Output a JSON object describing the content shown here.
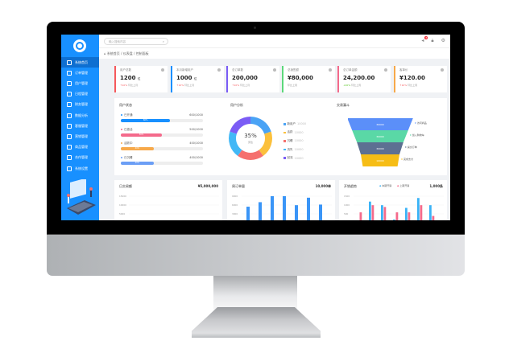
{
  "colors": {
    "primary": "#1890ff",
    "red": "#f5595c",
    "blue": "#1890ff",
    "purple": "#7a5cf5",
    "green": "#5cd87a",
    "pink": "#f46a8b",
    "orange": "#f7a94a"
  },
  "header": {
    "search_placeholder": "输入搜索内容",
    "search_icon": "search-icon",
    "notification_count": "8",
    "icons": [
      "notification-icon",
      "lock-icon",
      "gear-icon"
    ]
  },
  "breadcrumb": [
    "系统首页",
    "仪表盘",
    "控制面板"
  ],
  "sidebar": {
    "items": [
      {
        "label": "系统首页",
        "icon": "home-icon",
        "active": true
      },
      {
        "label": "订单管理",
        "icon": "document-icon"
      },
      {
        "label": "用户管理",
        "icon": "user-icon"
      },
      {
        "label": "日程管理",
        "icon": "calendar-icon"
      },
      {
        "label": "财务管理",
        "icon": "wallet-icon"
      },
      {
        "label": "数据分析",
        "icon": "chart-icon"
      },
      {
        "label": "客服管理",
        "icon": "service-icon"
      },
      {
        "label": "营销管理",
        "icon": "marketing-icon"
      },
      {
        "label": "商品管理",
        "icon": "box-icon"
      },
      {
        "label": "合作管理",
        "icon": "partner-icon"
      },
      {
        "label": "系统设置",
        "icon": "monitor-icon"
      }
    ]
  },
  "cards": [
    {
      "title": "用户总数",
      "value": "1200",
      "unit": "位",
      "change": "↑10%",
      "note": "环比上月",
      "color": "#f5595c"
    },
    {
      "title": "本月新增用户",
      "value": "1000",
      "unit": "位",
      "change": "↑10%",
      "note": "环比上月",
      "color": "#1890ff"
    },
    {
      "title": "总订单数",
      "value": "200,000",
      "unit": "",
      "change": "↑10%",
      "note": "环比上月",
      "color": "#7a5cf5"
    },
    {
      "title": "总销售额",
      "value": "¥80,000",
      "unit": "",
      "change": "",
      "note": "环比上周",
      "color": "#5cd87a"
    },
    {
      "title": "总订单金额",
      "value": "24,200.00",
      "unit": "",
      "change": "↓20%",
      "note": "环比上周",
      "color": "#f46a8b"
    },
    {
      "title": "客单价",
      "value": "¥120.00",
      "unit": "",
      "change": "↑10%",
      "note": "环比上周",
      "color": "#f7a94a"
    }
  ],
  "user_progress": {
    "title": "用户状态",
    "items": [
      {
        "label": "已开通",
        "value": "600/1000",
        "percent": 60,
        "color": "#1890ff"
      },
      {
        "label": "已激活",
        "value": "500/1000",
        "percent": 50,
        "color": "#f46a8b"
      },
      {
        "label": "活跃中",
        "value": "400/1000",
        "percent": 40,
        "color": "#f7a94a"
      },
      {
        "label": "已沉睡",
        "value": "400/1000",
        "percent": 40,
        "color": "#6b9ef5"
      }
    ]
  },
  "donut": {
    "title": "用户分析",
    "center_value": "35%",
    "center_label": "男性",
    "segments": [
      {
        "label": "新用户",
        "value": 10000,
        "color": "#4aa3f5"
      },
      {
        "label": "活跃",
        "value": 10000,
        "color": "#fbc03c"
      },
      {
        "label": "沉睡",
        "value": 10000,
        "color": "#f5706e"
      },
      {
        "label": "流失",
        "value": 10000,
        "color": "#42b8f6"
      },
      {
        "label": "回流",
        "value": 10000,
        "color": "#7b5cf5"
      }
    ]
  },
  "funnel": {
    "title": "交易漏斗",
    "stages": [
      {
        "value": "30000",
        "label": "访问商品",
        "color": "#5b8ff9"
      },
      {
        "value": "30000",
        "label": "加入购物车",
        "color": "#5ad8a6"
      },
      {
        "value": "30000",
        "label": "提交订单",
        "color": "#5d7092"
      },
      {
        "value": "10000",
        "label": "完成支付",
        "color": "#f6bd16"
      }
    ]
  },
  "bottom": [
    {
      "title": "日交易额",
      "total": "¥5,000,000",
      "yticks": [
        "15000",
        "10000",
        "5000"
      ],
      "type": "line",
      "color": "#9fe29a",
      "values": [
        9,
        8,
        8.5,
        10,
        8,
        9,
        11,
        8,
        8.5,
        7.5,
        9,
        9,
        8,
        9,
        11,
        8.5,
        10,
        9.5,
        9.5,
        12
      ]
    },
    {
      "title": "周订单量",
      "total": "10,000单",
      "yticks": [
        "9000",
        "6000",
        "3000"
      ],
      "type": "bar",
      "color": "#3a95f7",
      "values": [
        5500,
        7000,
        9000,
        9000,
        6000,
        8500,
        6200
      ]
    },
    {
      "title": "开销趋势",
      "total": "1,000条",
      "legend": [
        "本期开销",
        "上期开销"
      ],
      "yticks": [
        "1500",
        "1000",
        "500"
      ],
      "type": "grouped-bar",
      "colors": [
        "#3ab3f7",
        "#f46a8b"
      ],
      "series": [
        [
          0,
          1200,
          1000,
          200,
          850,
          1400,
          1000
        ],
        [
          600,
          1000,
          900,
          600,
          600,
          1000,
          400
        ]
      ]
    }
  ]
}
